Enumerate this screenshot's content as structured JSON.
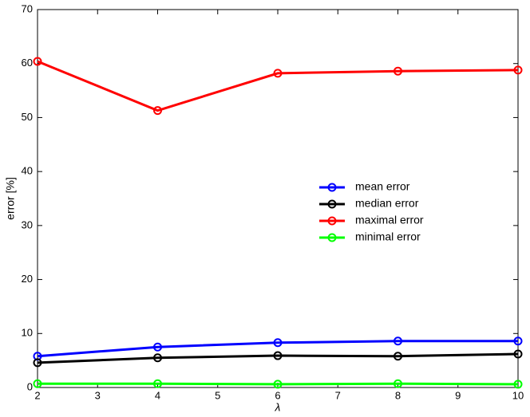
{
  "chart_data": {
    "type": "line",
    "x_label": "λ",
    "y_label": "error [%]",
    "x": [
      2,
      4,
      6,
      8,
      10
    ],
    "series": [
      {
        "name": "mean error",
        "color": "#0000ff",
        "values": [
          5.8,
          7.5,
          8.3,
          8.6,
          8.6
        ]
      },
      {
        "name": "median error",
        "color": "#000000",
        "values": [
          4.6,
          5.5,
          5.9,
          5.8,
          6.2
        ]
      },
      {
        "name": "maximal error",
        "color": "#ff0000",
        "values": [
          60.4,
          51.3,
          58.2,
          58.6,
          58.8
        ]
      },
      {
        "name": "minimal error",
        "color": "#00ff00",
        "values": [
          0.7,
          0.7,
          0.6,
          0.7,
          0.6
        ]
      }
    ],
    "xlim": [
      2,
      10
    ],
    "xticks": [
      2,
      3,
      4,
      5,
      6,
      7,
      8,
      9,
      10
    ],
    "ylim": [
      0,
      70
    ],
    "yticks": [
      0,
      10,
      20,
      30,
      40,
      50,
      60,
      70
    ],
    "grid": false,
    "legend_location": "right"
  }
}
